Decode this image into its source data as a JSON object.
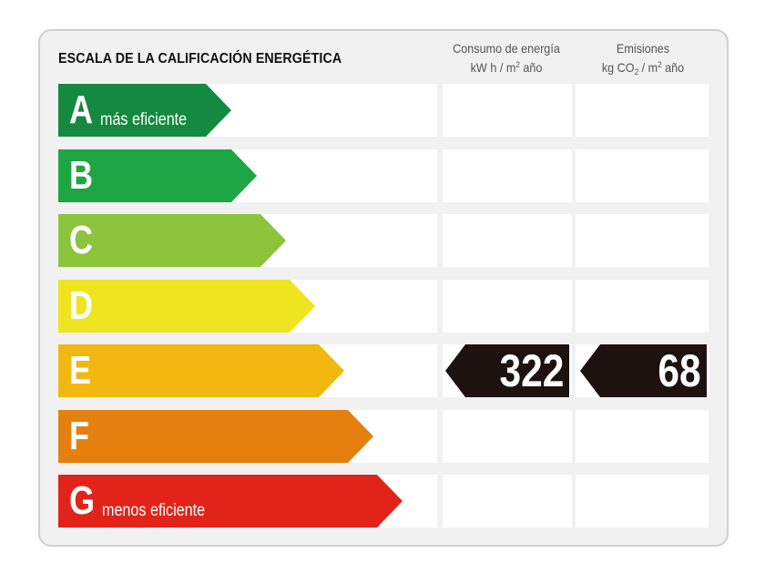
{
  "header": {
    "title": "ESCALA DE LA CALIFICACIÓN ENERGÉTICA",
    "energy_col": {
      "line1": "Consumo de energía",
      "line2_pre": "kW h / m",
      "line2_sup": "2",
      "line2_post": " año"
    },
    "emissions_col": {
      "line1": "Emisiones",
      "line2_pre": "kg CO",
      "line2_sub": "2",
      "line2_mid": " / m",
      "line2_sup": "2",
      "line2_post": " año"
    }
  },
  "ratings": [
    {
      "letter": "A",
      "label": "más eficiente",
      "color": "#138a3f"
    },
    {
      "letter": "B",
      "label": "",
      "color": "#1ea544"
    },
    {
      "letter": "C",
      "label": "",
      "color": "#8cc43c"
    },
    {
      "letter": "D",
      "label": "",
      "color": "#eee520"
    },
    {
      "letter": "E",
      "label": "",
      "color": "#f2b711"
    },
    {
      "letter": "F",
      "label": "",
      "color": "#e5800f"
    },
    {
      "letter": "G",
      "label": "menos eficiente",
      "color": "#e2231a"
    }
  ],
  "current": {
    "rating": "E",
    "energy_value": "322",
    "emissions_value": "68",
    "indicator_color": "#1e1210"
  }
}
